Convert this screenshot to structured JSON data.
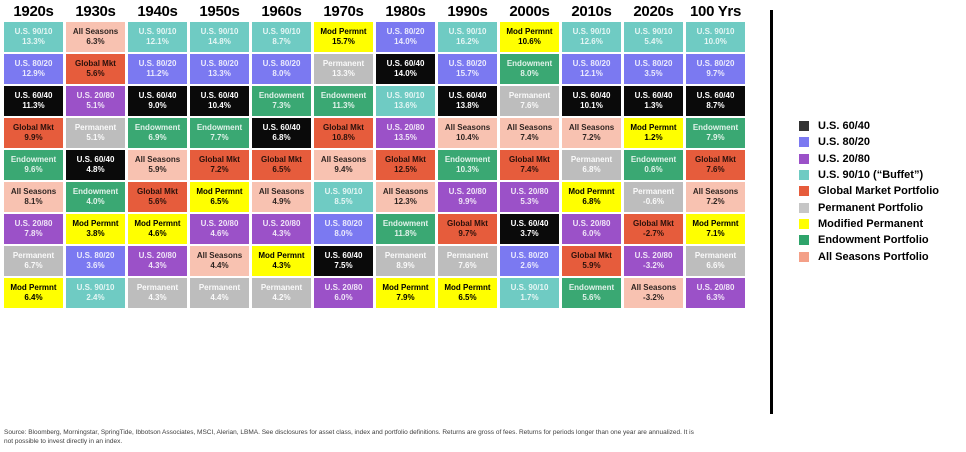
{
  "chart_data": {
    "type": "table",
    "title": "Portfolio returns ranked by decade",
    "portfolios": {
      "us9010": {
        "name": "U.S. 90/10",
        "bg": "#6FCBC3",
        "fg": "rgba(255,255,255,0.82)"
      },
      "us8020": {
        "name": "U.S. 80/20",
        "bg": "#7B79F1",
        "fg": "rgba(255,255,255,0.85)"
      },
      "us6040": {
        "name": "U.S. 60/40",
        "bg": "#0a0a0a",
        "fg": "#ffffff"
      },
      "us2080": {
        "name": "U.S. 20/80",
        "bg": "#9B51C8",
        "fg": "rgba(255,255,255,0.85)"
      },
      "global": {
        "name": "Global Mkt",
        "bg": "#E65C3C",
        "fg": "rgba(0,0,0,0.82)"
      },
      "perm": {
        "name": "Permanent",
        "bg": "#BDBDBD",
        "fg": "rgba(255,255,255,0.92)"
      },
      "modperm": {
        "name": "Mod Permnt",
        "bg": "#FFFF00",
        "fg": "#000000"
      },
      "endow": {
        "name": "Endowment",
        "bg": "#3AA873",
        "fg": "rgba(255,255,255,0.85)"
      },
      "allseasons": {
        "name": "All Seasons",
        "bg": "#F8C2B1",
        "fg": "rgba(0,0,0,0.82)"
      }
    },
    "columns": [
      {
        "header": "1920s",
        "cells": [
          [
            "us9010",
            "13.3%"
          ],
          [
            "us8020",
            "12.9%"
          ],
          [
            "us6040",
            "11.3%"
          ],
          [
            "global",
            "9.9%"
          ],
          [
            "endow",
            "9.6%"
          ],
          [
            "allseasons",
            "8.1%"
          ],
          [
            "us2080",
            "7.8%"
          ],
          [
            "perm",
            "6.7%"
          ],
          [
            "modperm",
            "6.4%"
          ]
        ]
      },
      {
        "header": "1930s",
        "cells": [
          [
            "allseasons",
            "6.3%"
          ],
          [
            "global",
            "5.6%"
          ],
          [
            "us2080",
            "5.1%"
          ],
          [
            "perm",
            "5.1%"
          ],
          [
            "us6040",
            "4.8%"
          ],
          [
            "endow",
            "4.0%"
          ],
          [
            "modperm",
            "3.8%"
          ],
          [
            "us8020",
            "3.6%"
          ],
          [
            "us9010",
            "2.4%"
          ]
        ]
      },
      {
        "header": "1940s",
        "cells": [
          [
            "us9010",
            "12.1%"
          ],
          [
            "us8020",
            "11.2%"
          ],
          [
            "us6040",
            "9.0%"
          ],
          [
            "endow",
            "6.9%"
          ],
          [
            "allseasons",
            "5.9%"
          ],
          [
            "global",
            "5.6%"
          ],
          [
            "modperm",
            "4.6%"
          ],
          [
            "us2080",
            "4.3%"
          ],
          [
            "perm",
            "4.3%"
          ]
        ]
      },
      {
        "header": "1950s",
        "cells": [
          [
            "us9010",
            "14.8%"
          ],
          [
            "us8020",
            "13.3%"
          ],
          [
            "us6040",
            "10.4%"
          ],
          [
            "endow",
            "7.7%"
          ],
          [
            "global",
            "7.2%"
          ],
          [
            "modperm",
            "6.5%"
          ],
          [
            "us2080",
            "4.6%"
          ],
          [
            "allseasons",
            "4.4%"
          ],
          [
            "perm",
            "4.4%"
          ]
        ]
      },
      {
        "header": "1960s",
        "cells": [
          [
            "us9010",
            "8.7%"
          ],
          [
            "us8020",
            "8.0%"
          ],
          [
            "endow",
            "7.3%"
          ],
          [
            "us6040",
            "6.8%"
          ],
          [
            "global",
            "6.5%"
          ],
          [
            "allseasons",
            "4.9%"
          ],
          [
            "us2080",
            "4.3%"
          ],
          [
            "modperm",
            "4.3%"
          ],
          [
            "perm",
            "4.2%"
          ]
        ]
      },
      {
        "header": "1970s",
        "cells": [
          [
            "modperm",
            "15.7%"
          ],
          [
            "perm",
            "13.3%"
          ],
          [
            "endow",
            "11.3%"
          ],
          [
            "global",
            "10.8%"
          ],
          [
            "allseasons",
            "9.4%"
          ],
          [
            "us9010",
            "8.5%"
          ],
          [
            "us8020",
            "8.0%"
          ],
          [
            "us6040",
            "7.5%"
          ],
          [
            "us2080",
            "6.0%"
          ]
        ]
      },
      {
        "header": "1980s",
        "cells": [
          [
            "us8020",
            "14.0%"
          ],
          [
            "us6040",
            "14.0%"
          ],
          [
            "us9010",
            "13.6%"
          ],
          [
            "us2080",
            "13.5%"
          ],
          [
            "global",
            "12.5%"
          ],
          [
            "allseasons",
            "12.3%"
          ],
          [
            "endow",
            "11.8%"
          ],
          [
            "perm",
            "8.9%"
          ],
          [
            "modperm",
            "7.9%"
          ]
        ]
      },
      {
        "header": "1990s",
        "cells": [
          [
            "us9010",
            "16.2%"
          ],
          [
            "us8020",
            "15.7%"
          ],
          [
            "us6040",
            "13.8%"
          ],
          [
            "allseasons",
            "10.4%"
          ],
          [
            "endow",
            "10.3%"
          ],
          [
            "us2080",
            "9.9%"
          ],
          [
            "global",
            "9.7%"
          ],
          [
            "perm",
            "7.6%"
          ],
          [
            "modperm",
            "6.5%"
          ]
        ]
      },
      {
        "header": "2000s",
        "cells": [
          [
            "modperm",
            "10.6%"
          ],
          [
            "endow",
            "8.0%"
          ],
          [
            "perm",
            "7.6%"
          ],
          [
            "allseasons",
            "7.4%"
          ],
          [
            "global",
            "7.4%"
          ],
          [
            "us2080",
            "5.3%"
          ],
          [
            "us6040",
            "3.7%"
          ],
          [
            "us8020",
            "2.6%"
          ],
          [
            "us9010",
            "1.7%"
          ]
        ]
      },
      {
        "header": "2010s",
        "cells": [
          [
            "us9010",
            "12.6%"
          ],
          [
            "us8020",
            "12.1%"
          ],
          [
            "us6040",
            "10.1%"
          ],
          [
            "allseasons",
            "7.2%"
          ],
          [
            "perm",
            "6.8%"
          ],
          [
            "modperm",
            "6.8%"
          ],
          [
            "us2080",
            "6.0%"
          ],
          [
            "global",
            "5.9%"
          ],
          [
            "endow",
            "5.6%"
          ]
        ]
      },
      {
        "header": "2020s",
        "cells": [
          [
            "us9010",
            "5.4%"
          ],
          [
            "us8020",
            "3.5%"
          ],
          [
            "us6040",
            "1.3%"
          ],
          [
            "modperm",
            "1.2%"
          ],
          [
            "endow",
            "0.6%"
          ],
          [
            "perm",
            "-0.6%"
          ],
          [
            "global",
            "-2.7%"
          ],
          [
            "us2080",
            "-3.2%"
          ],
          [
            "allseasons",
            "-3.2%"
          ]
        ]
      },
      {
        "header": "100 Yrs",
        "cells": [
          [
            "us9010",
            "10.0%"
          ],
          [
            "us8020",
            "9.7%"
          ],
          [
            "us6040",
            "8.7%"
          ],
          [
            "endow",
            "7.9%"
          ],
          [
            "global",
            "7.6%"
          ],
          [
            "allseasons",
            "7.2%"
          ],
          [
            "modperm",
            "7.1%"
          ],
          [
            "perm",
            "6.6%"
          ],
          [
            "us2080",
            "6.3%"
          ]
        ]
      }
    ]
  },
  "legend": {
    "items": [
      {
        "label": "U.S. 60/40",
        "color": "#333333"
      },
      {
        "label": "U.S. 80/20",
        "color": "#7B79F1"
      },
      {
        "label": "U.S. 20/80",
        "color": "#9B51C8"
      },
      {
        "label": "U.S. 90/10 (“Buffet”)",
        "color": "#6FCBC3"
      },
      {
        "label": "Global Market Portfolio",
        "color": "#E65C3C"
      },
      {
        "label": "Permanent Portfolio",
        "color": "#C6C6C6"
      },
      {
        "label": "Modified Permanent",
        "color": "#FFFF00"
      },
      {
        "label": "Endowment Portfolio",
        "color": "#2FA46B"
      },
      {
        "label": "All Seasons Portfolio",
        "color": "#F4A088"
      }
    ]
  },
  "footer": {
    "line1": "Source: Bloomberg, Morningstar, SpringTide, Ibbotson Associates, MSCI, Alerian, LBMA. See disclosures for asset class, index and portfolio definitions. Returns are gross of fees. Returns for periods longer than one year are annualized. It is",
    "line2": "not possible to invest directly in an index."
  }
}
